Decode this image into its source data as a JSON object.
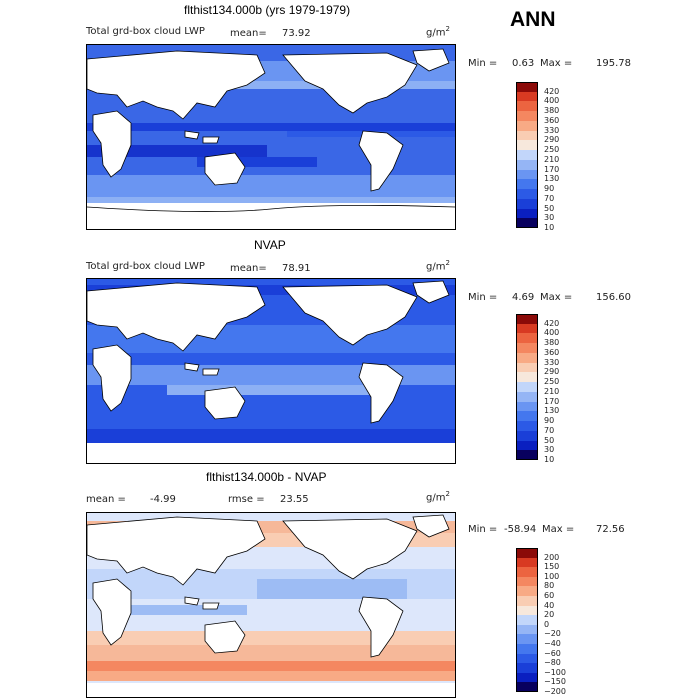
{
  "season": "ANN",
  "panels": [
    {
      "title": "flthist134.000b (yrs 1979-1979)",
      "field_label": "Total grd-box cloud LWP",
      "mean_label": "mean=",
      "mean_value": "73.92",
      "units": "g/m",
      "units_exp": "2",
      "min_label": "Min =",
      "min_value": "0.63",
      "max_label": "Max =",
      "max_value": "195.78",
      "colorbar_labels": [
        "420",
        "400",
        "380",
        "360",
        "330",
        "290",
        "250",
        "210",
        "170",
        "130",
        "90",
        "70",
        "50",
        "30",
        "10"
      ]
    },
    {
      "title": "NVAP",
      "field_label": "Total grd-box cloud LWP",
      "mean_label": "mean=",
      "mean_value": "78.91",
      "units": "g/m",
      "units_exp": "2",
      "min_label": "Min =",
      "min_value": "4.69",
      "max_label": "Max =",
      "max_value": "156.60",
      "colorbar_labels": [
        "420",
        "400",
        "380",
        "360",
        "330",
        "290",
        "250",
        "210",
        "170",
        "130",
        "90",
        "70",
        "50",
        "30",
        "10"
      ]
    },
    {
      "title": "flthist134.000b - NVAP",
      "mean_label": "mean =",
      "mean_value": "-4.99",
      "rmse_label": "rmse =",
      "rmse_value": "23.55",
      "units": "g/m",
      "units_exp": "2",
      "min_label": "Min =",
      "min_value": "-58.94",
      "max_label": "Max =",
      "max_value": "72.56",
      "colorbar_labels": [
        "200",
        "150",
        "100",
        "80",
        "60",
        "40",
        "20",
        "0",
        "−20",
        "−40",
        "−60",
        "−80",
        "−100",
        "−150",
        "−200"
      ]
    }
  ],
  "colors": {
    "abs_scale": [
      "#08005e",
      "#0a1fc0",
      "#1a3fd8",
      "#2c5ae6",
      "#4477ee",
      "#6a95f2",
      "#95b5f5",
      "#c2d6fa",
      "#f7e8dc",
      "#f9cdb3",
      "#f8aa85",
      "#f48760",
      "#ec6440",
      "#d83a22",
      "#8b0a08"
    ],
    "diff_scale": [
      "#08005e",
      "#0a1fc0",
      "#1a3fd8",
      "#2c5ae6",
      "#4477ee",
      "#6a95f2",
      "#95b5f5",
      "#c2d6fa",
      "#f7e8dc",
      "#f9cdb3",
      "#f8aa85",
      "#f48760",
      "#ec6440",
      "#d83a22",
      "#8b0a08"
    ],
    "ocean_mid": "#3a67e6",
    "ocean_light": "#8db0f4",
    "ocean_dark": "#1633cc",
    "land": "#ffffff",
    "diff_neutral": "#dde7fb",
    "diff_warm": "#f6b899",
    "diff_cool": "#9dbcf4"
  }
}
